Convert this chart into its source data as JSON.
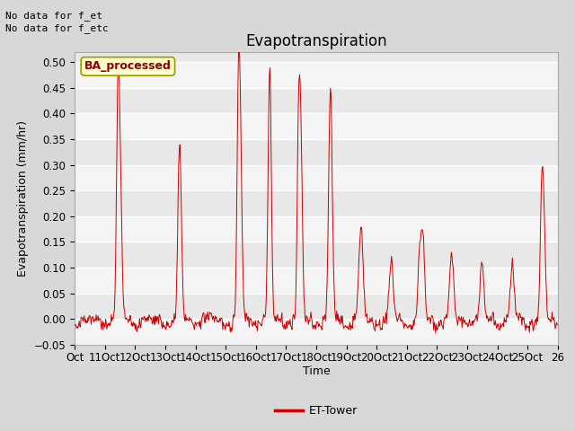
{
  "title": "Evapotranspiration",
  "ylabel": "Evapotranspiration (mm/hr)",
  "xlabel": "Time",
  "top_left_text_line1": "No data for f_et",
  "top_left_text_line2": "No data for f_etc",
  "annotation_box_text": "BA_processed",
  "ylim": [
    -0.05,
    0.52
  ],
  "yticks": [
    -0.05,
    0.0,
    0.05,
    0.1,
    0.15,
    0.2,
    0.25,
    0.3,
    0.35,
    0.4,
    0.45,
    0.5
  ],
  "xtick_labels": [
    "Oct",
    "11Oct",
    "12Oct",
    "13Oct",
    "14Oct",
    "15Oct",
    "16Oct",
    "17Oct",
    "18Oct",
    "19Oct",
    "20Oct",
    "21Oct",
    "22Oct",
    "23Oct",
    "24Oct",
    "25Oct",
    "26"
  ],
  "line_color": "#cc0000",
  "legend_label": "ET-Tower",
  "fig_facecolor": "#d8d8d8",
  "plot_bg_color": "#e8e8e8",
  "grid_color": "#ffffff",
  "annotation_box_color": "#ffffcc",
  "annotation_box_edge": "#999900",
  "title_fontsize": 12,
  "axis_label_fontsize": 9,
  "tick_fontsize": 8.5
}
